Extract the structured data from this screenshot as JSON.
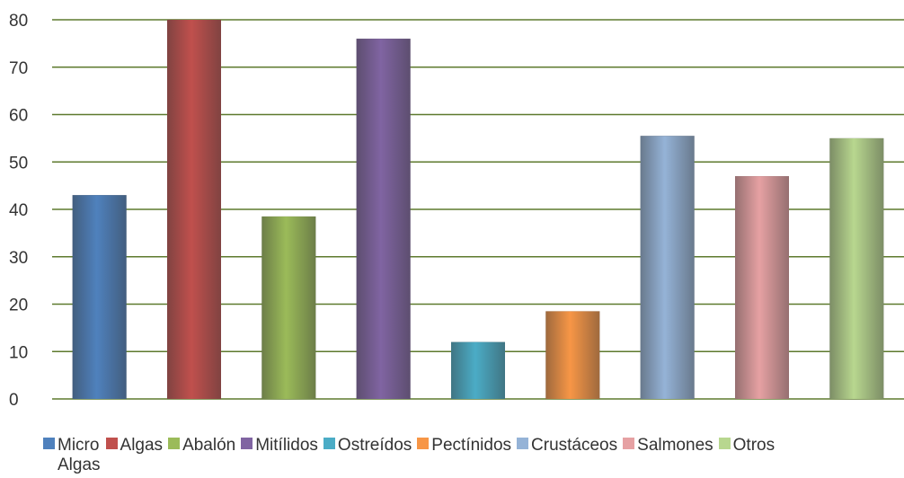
{
  "chart_data": {
    "type": "bar",
    "categories": [
      "Micro Algas",
      "Algas",
      "Abalón",
      "Mitílidos",
      "Ostreídos",
      "Pectínidos",
      "Crustáceos",
      "Salmones",
      "Otros"
    ],
    "values": [
      43,
      80,
      38.5,
      76,
      12,
      18.5,
      55.5,
      47,
      55
    ],
    "colors": [
      "#4F81BD",
      "#C0504D",
      "#9BBB59",
      "#8064A2",
      "#4BACC6",
      "#F79646",
      "#95B3D7",
      "#E6A1A3",
      "#B8D78F"
    ],
    "ylim": [
      0,
      80
    ],
    "yticks": [
      "0",
      "10",
      "20",
      "30",
      "40",
      "50",
      "60",
      "70",
      "80"
    ],
    "grid": true,
    "legend_position": "bottom",
    "title": "",
    "xlabel": "",
    "ylabel": ""
  },
  "legend": {
    "items": [
      {
        "label": "Micro\nAlgas",
        "color": "#4F81BD"
      },
      {
        "label": "Algas",
        "color": "#C0504D"
      },
      {
        "label": "Abalón",
        "color": "#9BBB59"
      },
      {
        "label": "Mitílidos",
        "color": "#8064A2"
      },
      {
        "label": "Ostreídos",
        "color": "#4BACC6"
      },
      {
        "label": "Pectínidos",
        "color": "#F79646"
      },
      {
        "label": "Crustáceos",
        "color": "#95B3D7"
      },
      {
        "label": "Salmones",
        "color": "#E6A1A3"
      },
      {
        "label": "Otros",
        "color": "#B8D78F"
      }
    ]
  }
}
